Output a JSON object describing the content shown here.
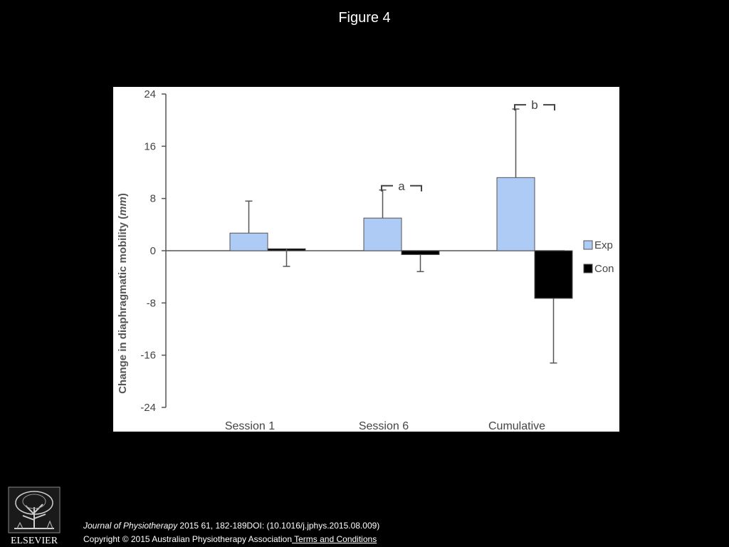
{
  "slide": {
    "title": "Figure 4"
  },
  "publisher": {
    "logo_text": "ELSEVIER"
  },
  "citation": {
    "journal": "Journal of Physiotherapy",
    "reference": " 2015 61, 182-189DOI: (10.1016/j.jphys.2015.08.009)",
    "copyright": "Copyright © 2015 Australian Physiotherapy Association",
    "terms_link": " Terms and Conditions"
  },
  "chart_data": {
    "type": "bar",
    "categories": [
      "Session 1",
      "Session 6",
      "Cumulative"
    ],
    "ylabel": "Change in diaphragmatic mobility (mm)",
    "ylabel_main": "Change in diaphragmatic mobility (",
    "ylabel_unit": "mm",
    "ylabel_close": ")",
    "ylim": [
      -24,
      24
    ],
    "yticks": [
      24,
      16,
      8,
      0,
      -8,
      -16,
      -24
    ],
    "series": [
      {
        "name": "Exp",
        "color": "#aecbf5",
        "values": [
          2.7,
          5.0,
          11.2
        ],
        "error_up": [
          4.9,
          4.3,
          10.5
        ],
        "error_down": [
          0,
          0,
          0
        ]
      },
      {
        "name": "Con",
        "color": "#000000",
        "values": [
          0.3,
          -0.6,
          -7.3
        ],
        "error_up": [
          0,
          0,
          0
        ],
        "error_down": [
          2.7,
          2.6,
          9.9
        ]
      }
    ],
    "annotations": [
      {
        "text": "a",
        "category": "Session 6"
      },
      {
        "text": "b",
        "category": "Cumulative"
      }
    ],
    "legend": {
      "position": "right",
      "labels": [
        "Exp",
        "Con"
      ]
    },
    "grid": false
  }
}
